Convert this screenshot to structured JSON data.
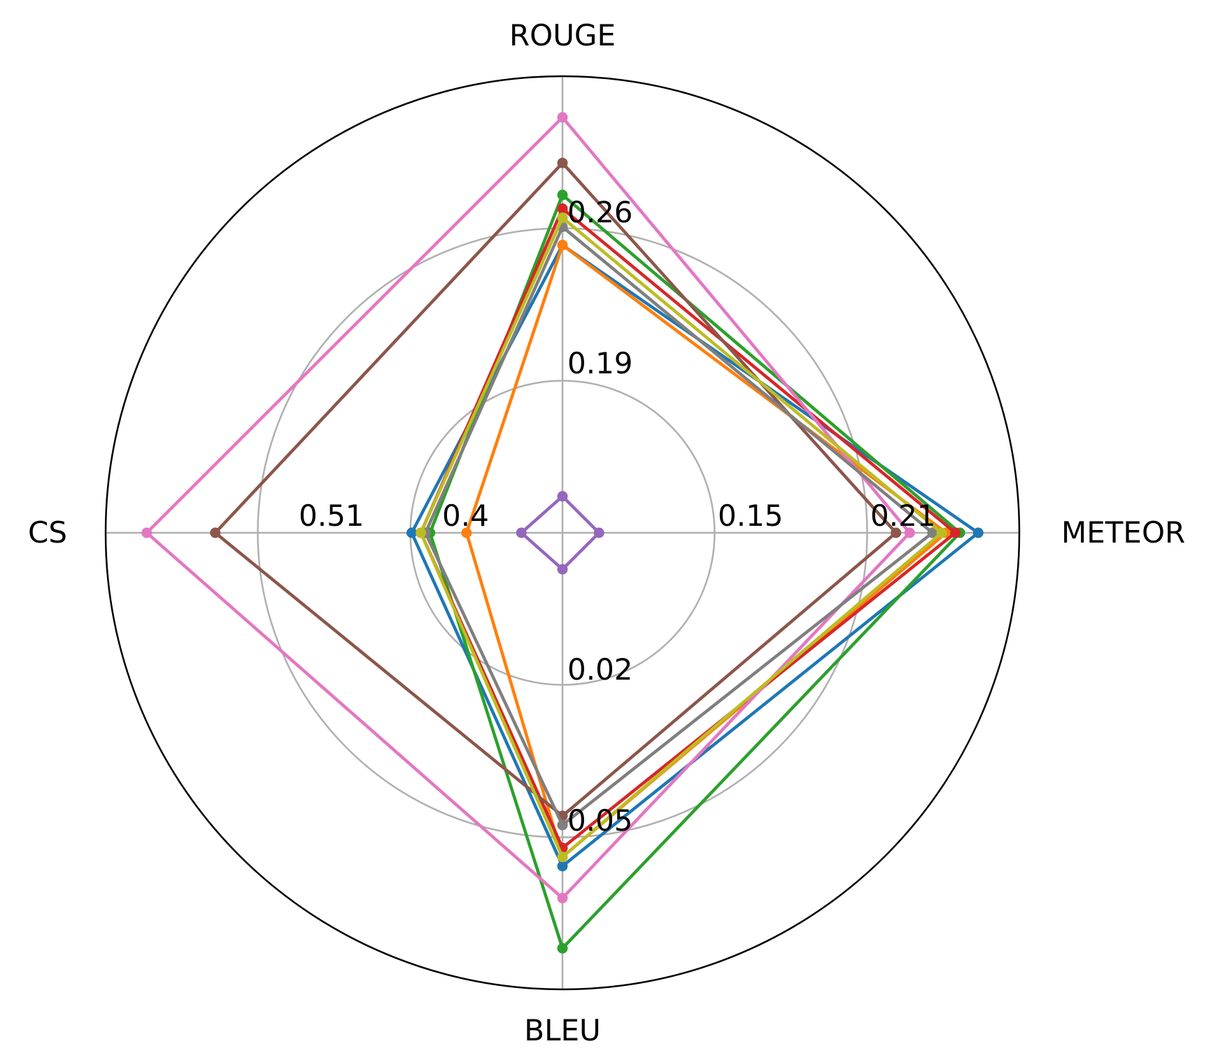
{
  "chart_data": {
    "type": "radar",
    "axes": [
      "METEOR",
      "ROUGE",
      "CS",
      "BLEU"
    ],
    "radial_ticks": [
      {
        "axis": "ROUGE",
        "labels": [
          "0.19",
          "0.26"
        ]
      },
      {
        "axis": "METEOR",
        "labels": [
          "0.15",
          "0.21"
        ]
      },
      {
        "axis": "CS",
        "labels": [
          "0.4",
          "0.51"
        ]
      },
      {
        "axis": "BLEU",
        "labels": [
          "0.02",
          "0.05"
        ]
      }
    ],
    "ring_fractions": [
      0.333,
      0.667,
      1.0
    ],
    "grid": true,
    "legend": "none",
    "series": [
      {
        "color": "#1f77b4",
        "values": [
          0.91,
          0.63,
          0.33,
          0.73
        ]
      },
      {
        "color": "#ff7f0e",
        "values": [
          0.84,
          0.63,
          0.21,
          0.71
        ]
      },
      {
        "color": "#2ca02c",
        "values": [
          0.87,
          0.74,
          0.29,
          0.91
        ]
      },
      {
        "color": "#d62728",
        "values": [
          0.86,
          0.71,
          0.31,
          0.69
        ]
      },
      {
        "color": "#9467bd",
        "values": [
          0.08,
          0.08,
          0.09,
          0.08
        ]
      },
      {
        "color": "#8c564b",
        "values": [
          0.73,
          0.81,
          0.76,
          0.62
        ]
      },
      {
        "color": "#e377c2",
        "values": [
          0.76,
          0.91,
          0.91,
          0.8
        ]
      },
      {
        "color": "#7f7f7f",
        "values": [
          0.81,
          0.67,
          0.3,
          0.64
        ]
      },
      {
        "color": "#bcbd22",
        "values": [
          0.83,
          0.69,
          0.31,
          0.71
        ]
      }
    ]
  }
}
